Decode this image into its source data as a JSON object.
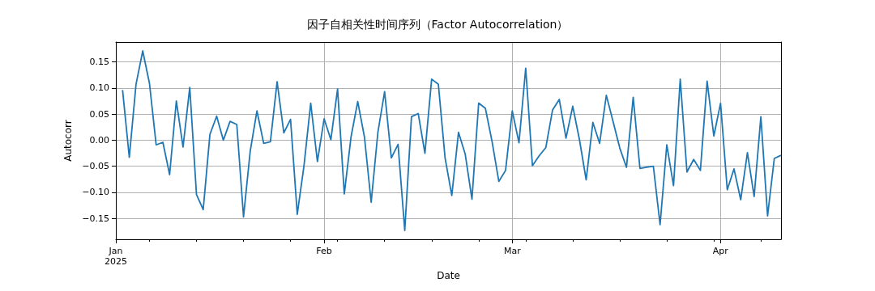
{
  "chart_data": {
    "type": "line",
    "title": "因子自相关性时间序列（Factor Autocorrelation）",
    "xlabel": "Date",
    "ylabel": "Autocorr",
    "x": [
      "2025-01-02",
      "2025-01-03",
      "2025-01-04",
      "2025-01-05",
      "2025-01-06",
      "2025-01-07",
      "2025-01-08",
      "2025-01-09",
      "2025-01-10",
      "2025-01-11",
      "2025-01-12",
      "2025-01-13",
      "2025-01-14",
      "2025-01-15",
      "2025-01-16",
      "2025-01-17",
      "2025-01-18",
      "2025-01-19",
      "2025-01-20",
      "2025-01-21",
      "2025-01-22",
      "2025-01-23",
      "2025-01-24",
      "2025-01-25",
      "2025-01-26",
      "2025-01-27",
      "2025-01-28",
      "2025-01-29",
      "2025-01-30",
      "2025-01-31",
      "2025-02-01",
      "2025-02-02",
      "2025-02-03",
      "2025-02-04",
      "2025-02-05",
      "2025-02-06",
      "2025-02-07",
      "2025-02-08",
      "2025-02-09",
      "2025-02-10",
      "2025-02-11",
      "2025-02-12",
      "2025-02-13",
      "2025-02-14",
      "2025-02-15",
      "2025-02-16",
      "2025-02-17",
      "2025-02-18",
      "2025-02-19",
      "2025-02-20",
      "2025-02-21",
      "2025-02-22",
      "2025-02-23",
      "2025-02-24",
      "2025-02-25",
      "2025-02-26",
      "2025-02-27",
      "2025-02-28",
      "2025-03-01",
      "2025-03-02",
      "2025-03-03",
      "2025-03-04",
      "2025-03-05",
      "2025-03-06",
      "2025-03-07",
      "2025-03-08",
      "2025-03-09",
      "2025-03-10",
      "2025-03-11",
      "2025-03-12",
      "2025-03-13",
      "2025-03-14",
      "2025-03-15",
      "2025-03-16",
      "2025-03-17",
      "2025-03-18",
      "2025-03-19",
      "2025-03-20",
      "2025-03-21",
      "2025-03-22",
      "2025-03-23",
      "2025-03-24",
      "2025-03-25",
      "2025-03-26",
      "2025-03-27",
      "2025-03-28",
      "2025-03-29",
      "2025-03-30",
      "2025-03-31",
      "2025-04-01",
      "2025-04-02",
      "2025-04-03",
      "2025-04-04",
      "2025-04-05",
      "2025-04-06",
      "2025-04-07",
      "2025-04-08",
      "2025-04-09",
      "2025-04-10"
    ],
    "series": [
      {
        "color": "#1f77b4",
        "values": [
          0.096,
          -0.033,
          0.107,
          0.171,
          0.109,
          -0.009,
          -0.004,
          -0.066,
          0.075,
          -0.013,
          0.101,
          -0.104,
          -0.133,
          0.011,
          0.046,
          0.0,
          0.036,
          0.03,
          -0.147,
          -0.021,
          0.056,
          -0.006,
          -0.003,
          0.112,
          0.014,
          0.04,
          -0.142,
          -0.049,
          0.071,
          -0.041,
          0.041,
          0.001,
          0.098,
          -0.103,
          0.006,
          0.074,
          0.006,
          -0.119,
          0.015,
          0.093,
          -0.034,
          -0.008,
          -0.173,
          0.045,
          0.051,
          -0.025,
          0.117,
          0.107,
          -0.034,
          -0.106,
          0.015,
          -0.027,
          -0.113,
          0.071,
          0.061,
          -0.003,
          -0.079,
          -0.058,
          0.056,
          -0.005,
          0.138,
          -0.049,
          -0.03,
          -0.014,
          0.058,
          0.078,
          0.004,
          0.065,
          0.001,
          -0.076,
          0.034,
          -0.006,
          0.086,
          0.036,
          -0.015,
          -0.052,
          0.082,
          -0.054,
          -0.052,
          -0.05,
          -0.162,
          -0.009,
          -0.087,
          0.117,
          -0.061,
          -0.037,
          -0.058,
          0.113,
          0.008,
          0.071,
          -0.095,
          -0.055,
          -0.114,
          -0.024,
          -0.108,
          0.045,
          -0.145,
          -0.035,
          -0.029
        ]
      }
    ],
    "xlim": [
      "2025-01-01",
      "2025-04-10"
    ],
    "xticks": [
      {
        "value": "2025-01-01",
        "label": "Jan\n2025"
      },
      {
        "value": "2025-01-06",
        "label": null
      },
      {
        "value": "2025-01-13",
        "label": null
      },
      {
        "value": "2025-01-20",
        "label": null
      },
      {
        "value": "2025-01-27",
        "label": null
      },
      {
        "value": "2025-02-01",
        "label": "Feb"
      },
      {
        "value": "2025-02-03",
        "label": null
      },
      {
        "value": "2025-02-10",
        "label": null
      },
      {
        "value": "2025-02-17",
        "label": null
      },
      {
        "value": "2025-02-24",
        "label": null
      },
      {
        "value": "2025-03-01",
        "label": "Mar"
      },
      {
        "value": "2025-03-03",
        "label": null
      },
      {
        "value": "2025-03-10",
        "label": null
      },
      {
        "value": "2025-03-17",
        "label": null
      },
      {
        "value": "2025-03-24",
        "label": null
      },
      {
        "value": "2025-03-31",
        "label": null
      },
      {
        "value": "2025-04-01",
        "label": "Apr"
      },
      {
        "value": "2025-04-07",
        "label": null
      }
    ],
    "ylim": [
      -0.19,
      0.188
    ],
    "yticks": [
      {
        "value": -0.15,
        "label": "−0.15"
      },
      {
        "value": -0.1,
        "label": "−0.10"
      },
      {
        "value": -0.05,
        "label": "−0.05"
      },
      {
        "value": 0,
        "label": "0.00"
      },
      {
        "value": 0.05,
        "label": "0.05"
      },
      {
        "value": 0.1,
        "label": "0.10"
      },
      {
        "value": 0.15,
        "label": "0.15"
      }
    ],
    "grid": true,
    "marker": "none",
    "line_style": "solid"
  }
}
